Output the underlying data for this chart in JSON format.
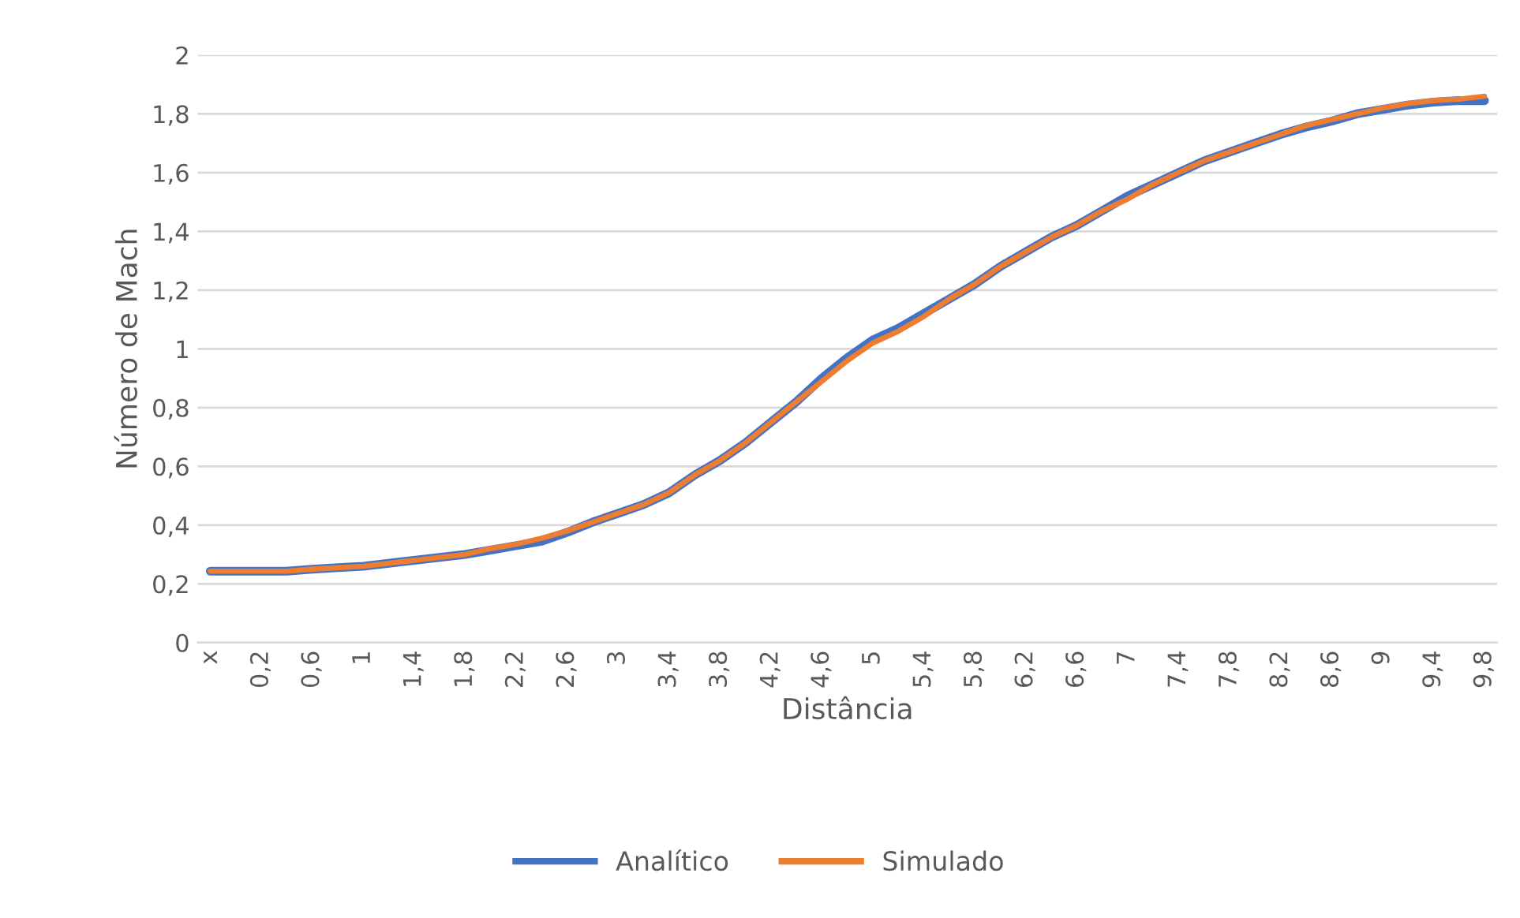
{
  "chart_data": {
    "type": "line",
    "xlabel": "Distância",
    "ylabel": "Número de Mach",
    "categories": [
      "x",
      null,
      "0,2",
      null,
      "0,6",
      null,
      "1",
      null,
      "1,4",
      null,
      "1,8",
      null,
      "2,2",
      null,
      "2,6",
      null,
      "3",
      null,
      "3,4",
      null,
      "3,8",
      null,
      "4,2",
      null,
      "4,6",
      null,
      "5",
      null,
      "5,4",
      null,
      "5,8",
      null,
      "6,2",
      null,
      "6,6",
      null,
      "7",
      null,
      "7,4",
      null,
      "7,8",
      null,
      "8,2",
      null,
      "8,6",
      null,
      "9",
      null,
      "9,4",
      null,
      "9,8"
    ],
    "series": [
      {
        "name": "Analítico",
        "color": "#4472c4",
        "values": [
          0.243,
          0.243,
          0.243,
          0.243,
          0.25,
          0.255,
          0.26,
          0.27,
          0.28,
          0.29,
          0.3,
          0.315,
          0.33,
          0.345,
          0.375,
          0.41,
          0.44,
          0.47,
          0.51,
          0.57,
          0.62,
          0.68,
          0.75,
          0.82,
          0.9,
          0.97,
          1.03,
          1.07,
          1.12,
          1.17,
          1.22,
          1.28,
          1.33,
          1.38,
          1.42,
          1.47,
          1.52,
          1.56,
          1.6,
          1.64,
          1.67,
          1.7,
          1.73,
          1.755,
          1.775,
          1.8,
          1.815,
          1.83,
          1.84,
          1.845,
          1.845
        ]
      },
      {
        "name": "Simulado",
        "color": "#ed7d31",
        "values": [
          0.243,
          0.243,
          0.243,
          0.243,
          0.25,
          0.255,
          0.26,
          0.27,
          0.28,
          0.29,
          0.3,
          0.32,
          0.335,
          0.355,
          0.38,
          0.41,
          0.44,
          0.47,
          0.51,
          0.57,
          0.62,
          0.68,
          0.75,
          0.82,
          0.89,
          0.96,
          1.02,
          1.06,
          1.11,
          1.17,
          1.22,
          1.28,
          1.33,
          1.38,
          1.42,
          1.47,
          1.51,
          1.56,
          1.6,
          1.64,
          1.67,
          1.7,
          1.73,
          1.76,
          1.78,
          1.8,
          1.82,
          1.835,
          1.845,
          1.85,
          1.86
        ]
      }
    ],
    "ylim": [
      0,
      2
    ],
    "yticks": [
      {
        "value": 0,
        "label": "0"
      },
      {
        "value": 0.2,
        "label": "0,2"
      },
      {
        "value": 0.4,
        "label": "0,4"
      },
      {
        "value": 0.6,
        "label": "0,6"
      },
      {
        "value": 0.8,
        "label": "0,8"
      },
      {
        "value": 1,
        "label": "1"
      },
      {
        "value": 1.2,
        "label": "1,2"
      },
      {
        "value": 1.4,
        "label": "1,4"
      },
      {
        "value": 1.6,
        "label": "1,6"
      },
      {
        "value": 1.8,
        "label": "1,8"
      },
      {
        "value": 2,
        "label": "2"
      }
    ],
    "grid": "y",
    "legend": "bottom",
    "marker": "none",
    "line_style": "solid"
  }
}
